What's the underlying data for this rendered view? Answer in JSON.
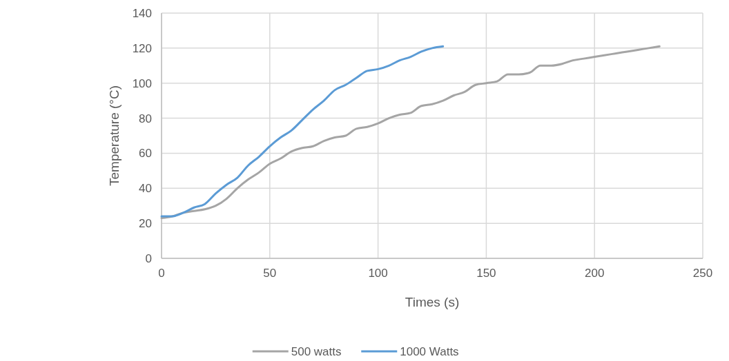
{
  "chart_data": {
    "type": "line",
    "xlabel": "Times (s)",
    "ylabel": "Temperature (°C)",
    "xlim": [
      0,
      250
    ],
    "xticks": [
      0,
      50,
      100,
      150,
      200,
      250
    ],
    "ylim": [
      0,
      140
    ],
    "yticks": [
      0,
      20,
      40,
      60,
      80,
      100,
      120,
      140
    ],
    "grid": true,
    "legend": "bottom",
    "marker": "none",
    "series": [
      {
        "name": "500 watts",
        "color": "#a5a5a5",
        "x": [
          0,
          5,
          10,
          15,
          20,
          25,
          30,
          35,
          40,
          45,
          50,
          55,
          60,
          65,
          70,
          75,
          80,
          85,
          90,
          95,
          100,
          105,
          110,
          115,
          120,
          125,
          130,
          135,
          140,
          145,
          150,
          155,
          160,
          165,
          170,
          175,
          180,
          185,
          190,
          195,
          200,
          205,
          210,
          215,
          220,
          225,
          230
        ],
        "values": [
          23,
          24,
          26,
          27,
          28,
          30,
          34,
          40,
          45,
          49,
          54,
          57,
          61,
          63,
          64,
          67,
          69,
          70,
          74,
          75,
          77,
          80,
          82,
          83,
          87,
          88,
          90,
          93,
          95,
          99,
          100,
          101,
          105,
          105,
          106,
          110,
          110,
          111,
          113,
          114,
          115,
          116,
          117,
          118,
          119,
          120,
          121
        ]
      },
      {
        "name": "1000 Watts",
        "color": "#5b9bd5",
        "x": [
          0,
          5,
          10,
          15,
          20,
          25,
          30,
          35,
          40,
          45,
          50,
          55,
          60,
          65,
          70,
          75,
          80,
          85,
          90,
          95,
          100,
          105,
          110,
          115,
          120,
          125,
          130
        ],
        "values": [
          24,
          24,
          26,
          29,
          31,
          37,
          42,
          46,
          53,
          58,
          64,
          69,
          73,
          79,
          85,
          90,
          96,
          99,
          103,
          107,
          108,
          110,
          113,
          115,
          118,
          120,
          121
        ]
      }
    ]
  }
}
